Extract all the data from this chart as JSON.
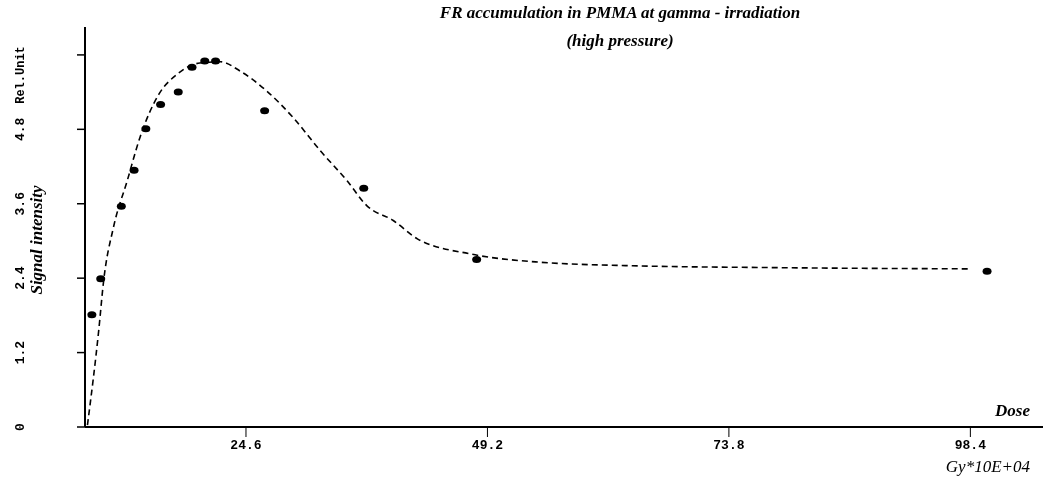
{
  "chart_data": {
    "type": "scatter",
    "title": "FR accumulation in PMMA at gamma - irradiation",
    "subtitle": "(high pressure)",
    "xlabel": "Dose",
    "ylabel": "Signal intensity",
    "annotations": [
      "Rel.Unit",
      "Gy*10E+04"
    ],
    "xlim": [
      8.2,
      105.8
    ],
    "ylim": [
      0,
      6.45
    ],
    "xticks": [
      24.6,
      49.2,
      73.8,
      98.4
    ],
    "yticks": [
      {
        "value": 0,
        "label": "0"
      },
      1.2,
      2.4,
      3.6,
      4.8,
      {
        "value": 6,
        "label": null
      }
    ],
    "series": [
      {
        "color": "#000000",
        "marker": "circle",
        "x": [
          8.9,
          9.8,
          11.9,
          13.2,
          14.4,
          15.9,
          17.7,
          19.1,
          20.4,
          21.5,
          26.5,
          36.6,
          48.1,
          100.1
        ],
        "values": [
          1.81,
          2.39,
          3.56,
          4.14,
          4.81,
          5.2,
          5.4,
          5.8,
          5.9,
          5.9,
          5.1,
          3.85,
          2.7,
          2.51
        ]
      },
      {
        "type": "line",
        "color": "#000000",
        "line_style": "dashed",
        "x": [
          8.45,
          9.6,
          10.1,
          11.1,
          12.5,
          13.8,
          15.7,
          17.6,
          19.9,
          22.0,
          24.0,
          26.7,
          29.4,
          32.2,
          34.9,
          36.9,
          39.6,
          42.1,
          47.5,
          54.3,
          64.0,
          78.5,
          98.3
        ],
        "values": [
          0.03,
          1.56,
          2.36,
          3.22,
          3.97,
          4.67,
          5.36,
          5.69,
          5.87,
          5.89,
          5.74,
          5.42,
          4.99,
          4.45,
          3.97,
          3.57,
          3.33,
          3.03,
          2.79,
          2.66,
          2.6,
          2.57,
          2.55
        ]
      }
    ]
  }
}
